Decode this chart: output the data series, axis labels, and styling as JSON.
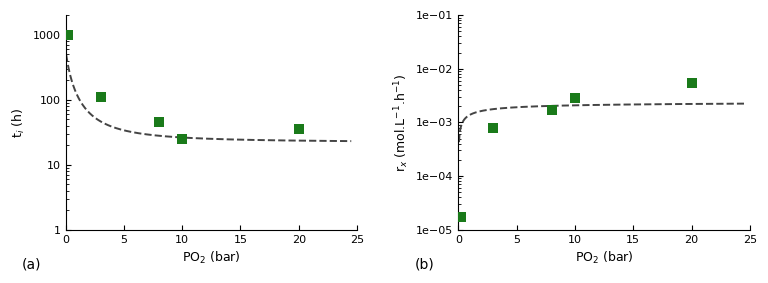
{
  "plot_a": {
    "scatter_x": [
      0.2,
      3.0,
      8.0,
      10.0,
      20.0
    ],
    "scatter_y": [
      1000,
      110,
      45,
      25,
      35
    ],
    "ylabel": "t$_i$ (h)",
    "xlabel": "PO$_2$ (bar)",
    "label": "(a)",
    "ylim": [
      1,
      2000
    ],
    "xlim": [
      0,
      25
    ],
    "yticks": [
      1,
      10,
      100,
      1000
    ],
    "xticks": [
      0,
      5,
      10,
      15,
      20,
      25
    ],
    "curve_params": {
      "A": 180,
      "b": 0.5,
      "n": 1.6,
      "C": 22
    }
  },
  "plot_b": {
    "scatter_x": [
      0.2,
      3.0,
      8.0,
      10.0,
      20.0
    ],
    "scatter_y": [
      1.7e-05,
      0.0008,
      0.0017,
      0.0028,
      0.0055
    ],
    "ylabel": "r$_x$ (mol.L$^{-1}$.h$^{-1}$)",
    "xlabel": "PO$_2$ (bar)",
    "label": "(b)",
    "ylim": [
      1e-05,
      0.1
    ],
    "xlim": [
      0,
      25
    ],
    "yticks": [
      1e-05,
      0.0001,
      0.001,
      0.01,
      0.1
    ],
    "xticks": [
      0,
      5,
      10,
      15,
      20,
      25
    ],
    "curve_params": {
      "A": 0.0025,
      "K": 0.8,
      "n": 0.6
    }
  },
  "marker_color": "#1a7a1a",
  "marker_size": 7,
  "line_color": "#444444",
  "line_style": "--",
  "line_width": 1.4
}
